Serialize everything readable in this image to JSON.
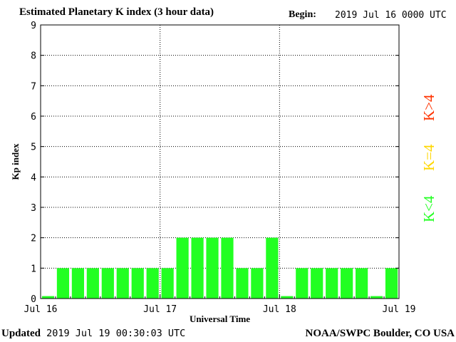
{
  "header": {
    "title": "Estimated Planetary K index (3 hour data)",
    "begin_label": "Begin:",
    "begin_value": "2019 Jul 16 0000 UTC"
  },
  "footer": {
    "updated_label": "Updated",
    "updated_value": "2019 Jul 19 00:30:03 UTC",
    "credit": "NOAA/SWPC Boulder, CO USA"
  },
  "legend": {
    "red": "K>4",
    "yellow": "K=4",
    "green": "K<4",
    "colors": {
      "red": "#ff3300",
      "yellow": "#ffd700",
      "green": "#22ff22"
    }
  },
  "chart_data": {
    "type": "bar",
    "title": "Estimated Planetary K index (3 hour data)",
    "xlabel": "Universal Time",
    "ylabel": "Kp index",
    "ylim": [
      0,
      9
    ],
    "yticks": [
      0,
      1,
      2,
      3,
      4,
      5,
      6,
      7,
      8,
      9
    ],
    "xtick_labels": [
      "Jul 16",
      "Jul 17",
      "Jul 18",
      "Jul 19"
    ],
    "interval_hours": 3,
    "values": [
      0,
      1,
      1,
      1,
      1,
      1,
      1,
      1,
      1,
      2,
      2,
      2,
      2,
      1,
      1,
      2,
      0,
      1,
      1,
      1,
      1,
      1,
      0,
      1
    ],
    "bar_color": "#22ff22",
    "grid": true
  }
}
